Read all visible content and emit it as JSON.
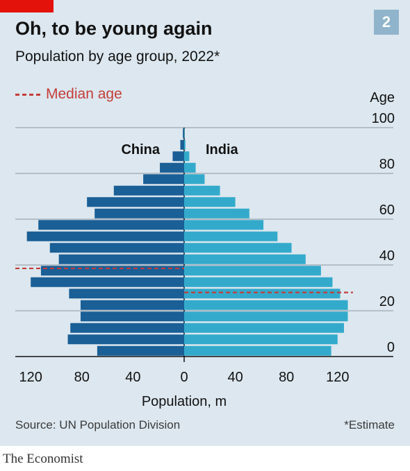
{
  "header": {
    "title": "Oh, to be young again",
    "subtitle": "Population by age group, 2022*",
    "chart_number": "2"
  },
  "legend": {
    "median_label": "Median age"
  },
  "footer": {
    "source": "Source: UN Population Division",
    "note": "*Estimate",
    "brand": "The Economist"
  },
  "colors": {
    "background": "#dce7ef",
    "china": "#1a5f96",
    "india": "#33aacb",
    "median": "#c43d39",
    "brand_red": "#e3120b"
  },
  "chart_data": {
    "type": "bar",
    "orientation": "horizontal-pyramid",
    "title": "Oh, to be young again",
    "subtitle": "Population by age group, 2022*",
    "xlabel": "Population, m",
    "ylabel": "Age",
    "x_ticks": [
      "120",
      "80",
      "40",
      "0",
      "40",
      "80",
      "120"
    ],
    "y_ticks": [
      "0",
      "20",
      "40",
      "60",
      "80",
      "100"
    ],
    "xlim": [
      -130,
      130
    ],
    "ylim": [
      0,
      100
    ],
    "age_groups": [
      "0-4",
      "5-9",
      "10-14",
      "15-19",
      "20-24",
      "25-29",
      "30-34",
      "35-39",
      "40-44",
      "45-49",
      "50-54",
      "55-59",
      "60-64",
      "65-69",
      "70-74",
      "75-79",
      "80-84",
      "85-89",
      "90-94",
      "95-99"
    ],
    "series": [
      {
        "name": "China",
        "side": "left",
        "values": [
          68,
          91,
          89,
          81,
          81,
          90,
          120,
          112,
          98,
          105,
          123,
          114,
          70,
          76,
          55,
          32,
          19,
          9,
          3,
          1
        ]
      },
      {
        "name": "India",
        "side": "right",
        "values": [
          115,
          120,
          125,
          128,
          128,
          122,
          116,
          107,
          95,
          84,
          73,
          62,
          51,
          40,
          28,
          16,
          9,
          4,
          1,
          0.3
        ]
      }
    ],
    "median_age": {
      "label": "Median age",
      "China": 38.5,
      "India": 28
    }
  }
}
